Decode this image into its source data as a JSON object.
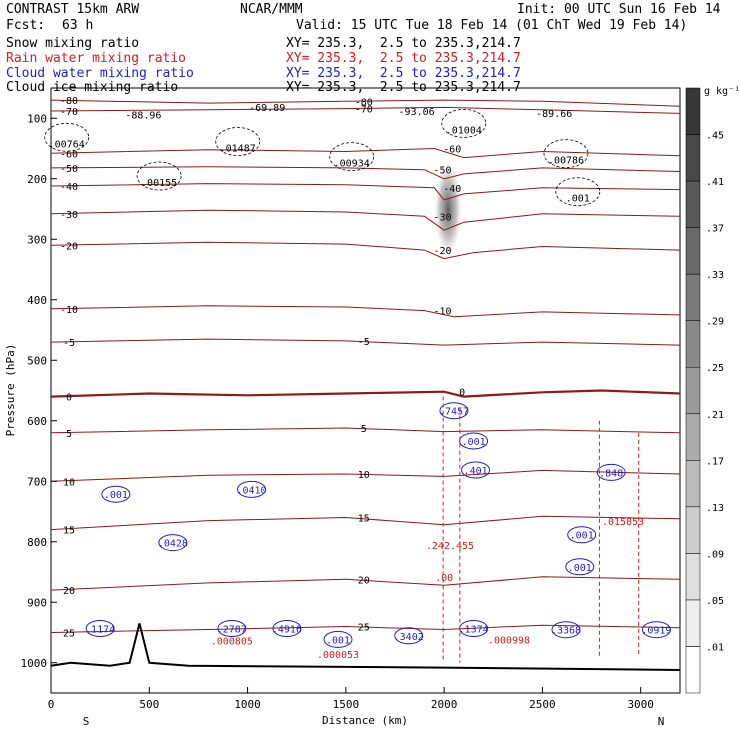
{
  "header": {
    "model": "CONTRAST 15km ARW",
    "org": "NCAR/MMM",
    "init": "Init: 00 UTC Sun 16 Feb 14",
    "fcst_label": "Fcst:",
    "fcst_value": "63 h",
    "valid": "Valid: 15 UTC Tue 18 Feb 14 (01 ChT Wed 19 Feb 14)",
    "fields": [
      {
        "name": "Snow mixing ratio",
        "xy": "",
        "color": "#000000"
      },
      {
        "name": "Rain water mixing ratio",
        "xy": "XY= 235.3,  2.5 to 235.3,214.7",
        "color": "#d02020"
      },
      {
        "name": "Cloud water mixing ratio",
        "xy": "XY= 235.3,  2.5 to 235.3,214.7",
        "color": "#1f1fc8"
      },
      {
        "name": "Cloud ice mixing ratio",
        "xy": "XY= 235.3,  2.5 to 235.3,214.7",
        "color": "#000000"
      }
    ],
    "snow_xy": "XY= 235.3,  2.5 to 235.3,214.7"
  },
  "chart_data": {
    "type": "cross-section",
    "xlabel": "Distance (km)",
    "ylabel": "Pressure (hPa)",
    "xlim": [
      0,
      3200
    ],
    "ylim": [
      1050,
      50
    ],
    "x_ticks": [
      0,
      500,
      1000,
      1500,
      2000,
      2500,
      3000
    ],
    "y_ticks": [
      100,
      200,
      300,
      400,
      500,
      600,
      700,
      800,
      900,
      1000
    ],
    "x_end_labels": {
      "left": "S",
      "right": "N"
    },
    "colorbar": {
      "unit": "g kg⁻¹",
      "labels": [
        ".01",
        ".05",
        ".09",
        ".13",
        ".17",
        ".21",
        ".25",
        ".29",
        ".33",
        ".37",
        ".41",
        ".45"
      ]
    },
    "temperature_contours": [
      {
        "label": "-80",
        "points": [
          [
            0,
            70
          ],
          [
            800,
            75
          ],
          [
            1500,
            72
          ],
          [
            2000,
            70
          ],
          [
            2500,
            72
          ],
          [
            3200,
            80
          ]
        ]
      },
      {
        "label": "-70",
        "points": [
          [
            0,
            88
          ],
          [
            800,
            86
          ],
          [
            1500,
            84
          ],
          [
            2000,
            82
          ],
          [
            2500,
            86
          ],
          [
            3200,
            92
          ]
        ]
      },
      {
        "label": "-60",
        "points": [
          [
            0,
            158
          ],
          [
            800,
            152
          ],
          [
            1500,
            155
          ],
          [
            1950,
            150
          ],
          [
            2100,
            165
          ],
          [
            2500,
            155
          ],
          [
            3200,
            162
          ]
        ]
      },
      {
        "label": "-50",
        "points": [
          [
            0,
            182
          ],
          [
            800,
            180
          ],
          [
            1500,
            182
          ],
          [
            1900,
            185
          ],
          [
            2000,
            200
          ],
          [
            2100,
            192
          ],
          [
            2500,
            182
          ],
          [
            3200,
            188
          ]
        ]
      },
      {
        "label": "-40",
        "points": [
          [
            0,
            212
          ],
          [
            800,
            208
          ],
          [
            1500,
            210
          ],
          [
            1950,
            215
          ],
          [
            2000,
            235
          ],
          [
            2100,
            225
          ],
          [
            2500,
            215
          ],
          [
            3200,
            218
          ]
        ]
      },
      {
        "label": "-30",
        "points": [
          [
            0,
            258
          ],
          [
            800,
            252
          ],
          [
            1500,
            255
          ],
          [
            1900,
            262
          ],
          [
            2000,
            285
          ],
          [
            2100,
            272
          ],
          [
            2500,
            258
          ],
          [
            3200,
            262
          ]
        ]
      },
      {
        "label": "-20",
        "points": [
          [
            0,
            310
          ],
          [
            800,
            305
          ],
          [
            1500,
            308
          ],
          [
            1900,
            318
          ],
          [
            2000,
            332
          ],
          [
            2150,
            322
          ],
          [
            2500,
            312
          ],
          [
            3200,
            318
          ]
        ]
      },
      {
        "label": "-10",
        "points": [
          [
            0,
            415
          ],
          [
            800,
            410
          ],
          [
            1500,
            412
          ],
          [
            1900,
            418
          ],
          [
            2050,
            428
          ],
          [
            2500,
            420
          ],
          [
            3200,
            425
          ]
        ]
      },
      {
        "label": "-5",
        "points": [
          [
            0,
            470
          ],
          [
            800,
            465
          ],
          [
            1500,
            468
          ],
          [
            2000,
            475
          ],
          [
            2500,
            470
          ],
          [
            3200,
            475
          ]
        ]
      },
      {
        "label": "0",
        "points": [
          [
            0,
            560
          ],
          [
            500,
            555
          ],
          [
            1000,
            558
          ],
          [
            1500,
            555
          ],
          [
            2000,
            552
          ],
          [
            2100,
            560
          ],
          [
            2500,
            553
          ],
          [
            2800,
            550
          ],
          [
            3200,
            555
          ]
        ]
      },
      {
        "label": "5",
        "points": [
          [
            0,
            620
          ],
          [
            800,
            615
          ],
          [
            1500,
            612
          ],
          [
            2000,
            618
          ],
          [
            2500,
            615
          ],
          [
            3200,
            620
          ]
        ]
      },
      {
        "label": "10",
        "points": [
          [
            0,
            700
          ],
          [
            800,
            690
          ],
          [
            1500,
            688
          ],
          [
            2000,
            692
          ],
          [
            2500,
            682
          ],
          [
            3200,
            688
          ]
        ]
      },
      {
        "label": "15",
        "points": [
          [
            0,
            780
          ],
          [
            800,
            765
          ],
          [
            1500,
            760
          ],
          [
            2000,
            772
          ],
          [
            2500,
            758
          ],
          [
            3200,
            762
          ]
        ]
      },
      {
        "label": "20",
        "points": [
          [
            0,
            880
          ],
          [
            800,
            868
          ],
          [
            1500,
            862
          ],
          [
            2000,
            872
          ],
          [
            2500,
            858
          ],
          [
            3200,
            862
          ]
        ]
      },
      {
        "label": "25",
        "points": [
          [
            0,
            950
          ],
          [
            800,
            945
          ],
          [
            1500,
            940
          ],
          [
            2000,
            945
          ],
          [
            2500,
            938
          ],
          [
            3200,
            942
          ]
        ]
      }
    ],
    "terrain": {
      "points": [
        [
          0,
          1005
        ],
        [
          100,
          1000
        ],
        [
          300,
          1005
        ],
        [
          400,
          1000
        ],
        [
          450,
          935
        ],
        [
          500,
          1000
        ],
        [
          700,
          1005
        ],
        [
          2000,
          1008
        ],
        [
          3200,
          1012
        ]
      ]
    },
    "maxima_labels": [
      {
        "x": 80,
        "p": 148,
        "text": ".00764",
        "color": "#000000"
      },
      {
        "x": 470,
        "p": 100,
        "text": "-88.96",
        "color": "#000000"
      },
      {
        "x": 1100,
        "p": 88,
        "text": "-69.89",
        "color": "#000000"
      },
      {
        "x": 950,
        "p": 155,
        "text": ".01487",
        "color": "#000000"
      },
      {
        "x": 550,
        "p": 212,
        "text": ".00155",
        "color": "#000000"
      },
      {
        "x": 1530,
        "p": 180,
        "text": ".00934",
        "color": "#000000"
      },
      {
        "x": 1860,
        "p": 95,
        "text": "-93.06",
        "color": "#000000"
      },
      {
        "x": 2100,
        "p": 125,
        "text": ".01004",
        "color": "#000000"
      },
      {
        "x": 2560,
        "p": 98,
        "text": "-89.66",
        "color": "#000000"
      },
      {
        "x": 2620,
        "p": 175,
        "text": ".00786",
        "color": "#000000"
      },
      {
        "x": 2680,
        "p": 238,
        "text": ".001",
        "color": "#000000"
      },
      {
        "x": 2050,
        "p": 590,
        "text": ".7457",
        "color": "#1f1fc8"
      },
      {
        "x": 2150,
        "p": 640,
        "text": ".001",
        "color": "#1f1fc8"
      },
      {
        "x": 2160,
        "p": 688,
        "text": ".401",
        "color": "#1f1fc8"
      },
      {
        "x": 2850,
        "p": 692,
        "text": ".848",
        "color": "#1f1fc8"
      },
      {
        "x": 330,
        "p": 728,
        "text": ".001",
        "color": "#1f1fc8"
      },
      {
        "x": 1020,
        "p": 720,
        "text": ".0410",
        "color": "#1f1fc8"
      },
      {
        "x": 620,
        "p": 808,
        "text": ".0428",
        "color": "#1f1fc8"
      },
      {
        "x": 2700,
        "p": 795,
        "text": ".001",
        "color": "#1f1fc8"
      },
      {
        "x": 2690,
        "p": 848,
        "text": ".001",
        "color": "#1f1fc8"
      },
      {
        "x": 250,
        "p": 950,
        "text": ".1174",
        "color": "#1f1fc8"
      },
      {
        "x": 920,
        "p": 950,
        "text": ".2787",
        "color": "#1f1fc8"
      },
      {
        "x": 1200,
        "p": 950,
        "text": ".4916",
        "color": "#1f1fc8"
      },
      {
        "x": 1460,
        "p": 968,
        "text": ".001",
        "color": "#1f1fc8"
      },
      {
        "x": 1820,
        "p": 962,
        "text": ".3402",
        "color": "#1f1fc8"
      },
      {
        "x": 2150,
        "p": 950,
        "text": ".1374",
        "color": "#1f1fc8"
      },
      {
        "x": 2620,
        "p": 952,
        "text": ".3368",
        "color": "#1f1fc8"
      },
      {
        "x": 3080,
        "p": 952,
        "text": ".0919",
        "color": "#1f1fc8"
      },
      {
        "x": 2030,
        "p": 812,
        "text": ".242.455",
        "color": "#d02020"
      },
      {
        "x": 2910,
        "p": 772,
        "text": ".015853",
        "color": "#d02020"
      },
      {
        "x": 920,
        "p": 970,
        "text": ".000805",
        "color": "#d02020"
      },
      {
        "x": 1460,
        "p": 992,
        "text": ".000053",
        "color": "#d02020"
      },
      {
        "x": 2330,
        "p": 968,
        "text": ".000998",
        "color": "#d02020"
      },
      {
        "x": 2000,
        "p": 865,
        "text": ".00",
        "color": "#d02020"
      }
    ],
    "snow_shading": {
      "x": 2020,
      "p": 250,
      "description": "grey shaded snow core"
    }
  }
}
